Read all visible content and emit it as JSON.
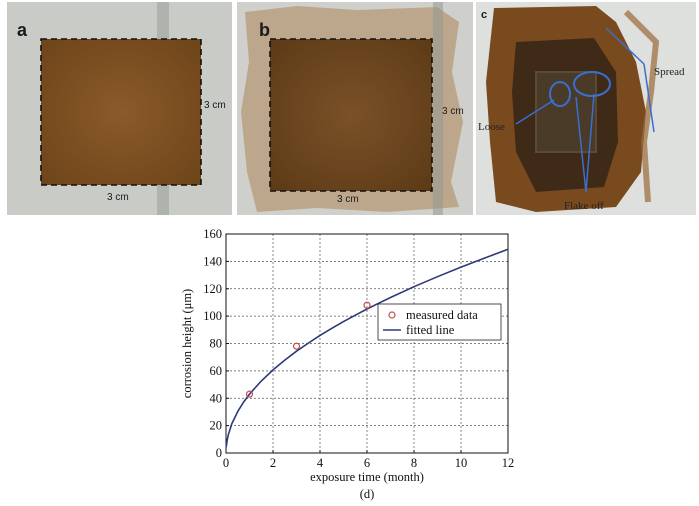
{
  "photos": [
    {
      "letter": "a",
      "dim_right": "3 cm",
      "dim_bottom": "3 cm"
    },
    {
      "letter": "b",
      "dim_right": "3 cm",
      "dim_bottom": "3 cm"
    },
    {
      "letter": "c",
      "annotations": [
        "Spread",
        "Loose",
        "Flake off"
      ]
    }
  ],
  "chart_data": {
    "type": "line",
    "panel_label": "(d)",
    "xlabel": "exposure time (month)",
    "ylabel": "corrosion height (μm)",
    "xlim": [
      0,
      12
    ],
    "ylim": [
      0,
      160
    ],
    "xticks": [
      0,
      2,
      4,
      6,
      8,
      10,
      12
    ],
    "yticks": [
      0,
      20,
      40,
      60,
      80,
      100,
      120,
      140,
      160
    ],
    "grid": true,
    "legend_position": "center-right",
    "series": [
      {
        "name": "measured data",
        "kind": "scatter",
        "marker": "circle",
        "color": "#c0504d",
        "x": [
          1,
          3,
          6
        ],
        "y": [
          43,
          78,
          108
        ]
      },
      {
        "name": "fitted line",
        "kind": "line",
        "color": "#2e3a78",
        "x": [
          0.01,
          0.05,
          0.1,
          0.25,
          0.5,
          0.75,
          1,
          1.5,
          2,
          2.5,
          3,
          3.5,
          4,
          4.5,
          5,
          5.5,
          6,
          7,
          8,
          9,
          10,
          11,
          12
        ],
        "y": [
          4.3,
          9.6,
          13.6,
          21.5,
          30.4,
          37.2,
          43,
          52.6,
          60.7,
          67.9,
          74.4,
          80.3,
          85.9,
          91.1,
          96,
          100.7,
          105.2,
          113.6,
          121.5,
          128.8,
          135.8,
          142.4,
          148.8
        ]
      }
    ]
  }
}
